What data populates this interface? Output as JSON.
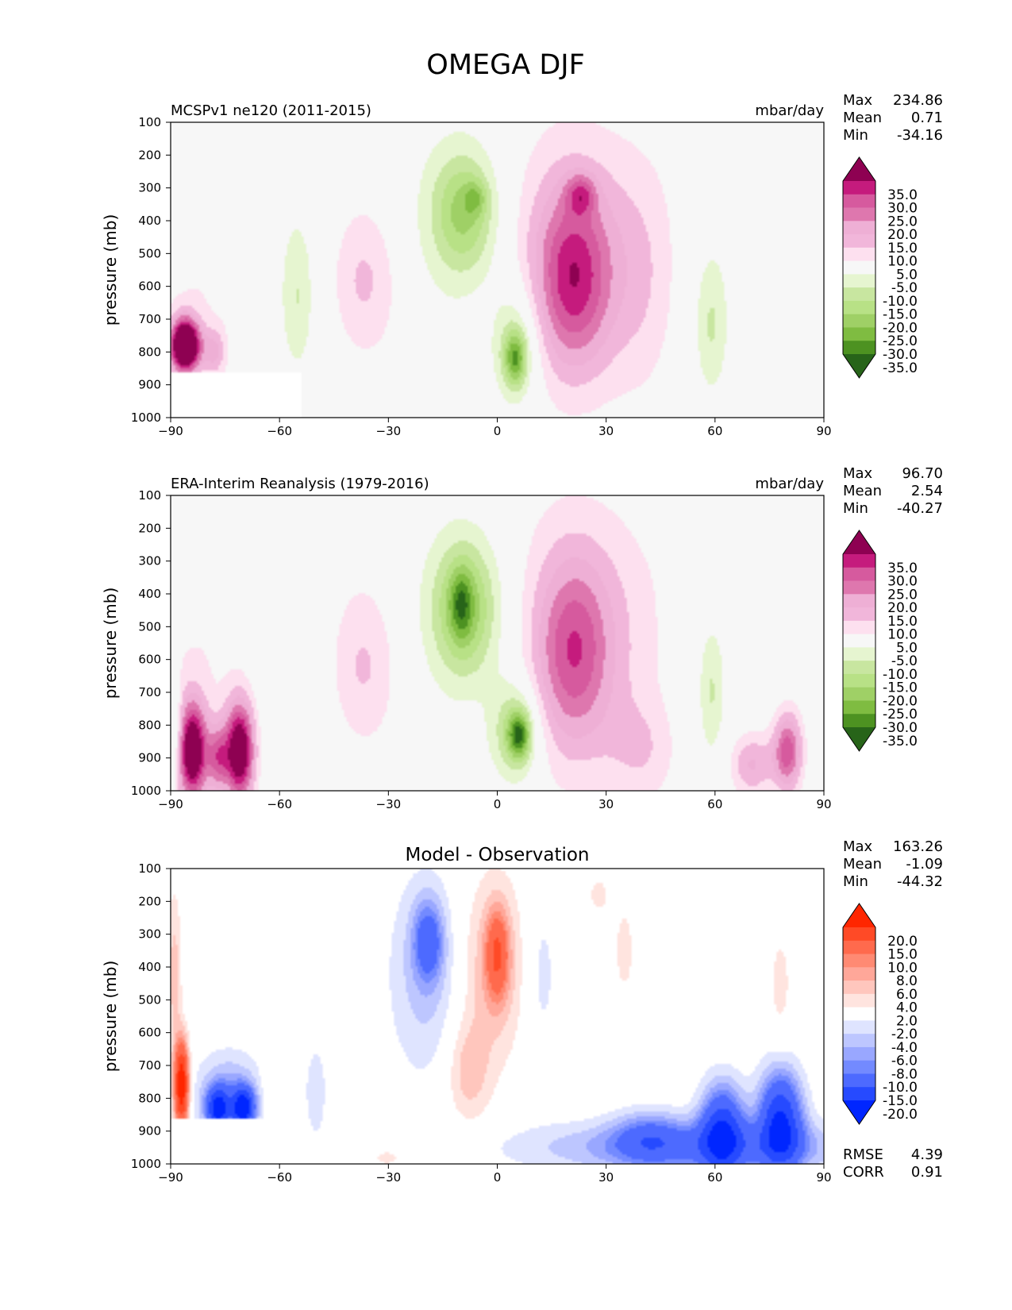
{
  "figure": {
    "title": "OMEGA DJF"
  },
  "chart_data": [
    {
      "type": "heatmap",
      "panel_key": "model",
      "title_left": "MCSPv1 ne120 (2011-2015)",
      "title_right": "mbar/day",
      "title_center": "",
      "ylabel": "pressure (mb)",
      "xlabel": "",
      "xlim": [
        -90,
        90
      ],
      "ylim": [
        1000,
        100
      ],
      "y_inverted": true,
      "x_ticks": [
        "−90",
        "−60",
        "−30",
        "0",
        "30",
        "60",
        "90"
      ],
      "y_ticks": [
        "100",
        "200",
        "300",
        "400",
        "500",
        "600",
        "700",
        "800",
        "900",
        "1000"
      ],
      "stats": {
        "max_label": "Max",
        "max": "234.86",
        "mean_label": "Mean",
        "mean": "0.71",
        "min_label": "Min",
        "min": "-34.16"
      },
      "colorbar": {
        "labels": [
          "35.0",
          "30.0",
          "25.0",
          "20.0",
          "15.0",
          "10.0",
          "5.0",
          "-5.0",
          "-10.0",
          "-15.0",
          "-20.0",
          "-25.0",
          "-30.0",
          "-35.0"
        ],
        "colors": [
          "#8e0152",
          "#c51b7d",
          "#d65a9e",
          "#de77ae",
          "#eeafd5",
          "#f1b6da",
          "#fde0ef",
          "#f7f7f7",
          "#e6f5d0",
          "#c8e6a0",
          "#b8e186",
          "#9fd066",
          "#7fbc41",
          "#4d9221",
          "#276419"
        ],
        "extend": "both"
      },
      "blobs": [
        {
          "lat": 20,
          "p": 500,
          "wlat": 26,
          "wp": 800,
          "v": 12
        },
        {
          "lat": 21,
          "p": 580,
          "wlat": 10,
          "wp": 540,
          "v": 24
        },
        {
          "lat": 23,
          "p": 320,
          "wlat": 4,
          "wp": 120,
          "v": 16
        },
        {
          "lat": -10,
          "p": 420,
          "wlat": 16,
          "wp": 620,
          "v": -11
        },
        {
          "lat": -9,
          "p": 370,
          "wlat": 8,
          "wp": 330,
          "v": -15
        },
        {
          "lat": -6,
          "p": 330,
          "wlat": 3,
          "wp": 100,
          "v": -10
        },
        {
          "lat": 5,
          "p": 780,
          "wlat": 7,
          "wp": 380,
          "v": -15
        },
        {
          "lat": 5,
          "p": 820,
          "wlat": 3,
          "wp": 160,
          "v": -22
        },
        {
          "lat": -37,
          "p": 580,
          "wlat": 16,
          "wp": 720,
          "v": 5
        },
        {
          "lat": -37,
          "p": 580,
          "wlat": 8,
          "wp": 380,
          "v": 7
        },
        {
          "lat": -55,
          "p": 580,
          "wlat": 14,
          "wp": 760,
          "v": -4
        },
        {
          "lat": -55,
          "p": 630,
          "wlat": 4,
          "wp": 420,
          "v": -8
        },
        {
          "lat": 58,
          "p": 620,
          "wlat": 10,
          "wp": 760,
          "v": -4
        },
        {
          "lat": 59,
          "p": 720,
          "wlat": 4,
          "wp": 380,
          "v": -8
        },
        {
          "lat": 78,
          "p": 640,
          "wlat": 8,
          "wp": 680,
          "v": 5
        },
        {
          "lat": 40,
          "p": 600,
          "wlat": 10,
          "wp": 700,
          "v": 5
        },
        {
          "lat": -80,
          "p": 560,
          "wlat": 16,
          "wp": 700,
          "v": 5
        },
        {
          "lat": -86,
          "p": 780,
          "wlat": 4,
          "wp": 160,
          "v": 60
        },
        {
          "lat": -78,
          "p": 800,
          "wlat": 3,
          "wp": 140,
          "v": 14
        }
      ],
      "mask": {
        "lon_max": -54,
        "p_min": 865
      }
    },
    {
      "type": "heatmap",
      "panel_key": "obs",
      "title_left": "ERA-Interim Reanalysis (1979-2016)",
      "title_right": "mbar/day",
      "title_center": "",
      "ylabel": "pressure (mb)",
      "xlabel": "",
      "xlim": [
        -90,
        90
      ],
      "ylim": [
        1000,
        100
      ],
      "y_inverted": true,
      "x_ticks": [
        "−90",
        "−60",
        "−30",
        "0",
        "30",
        "60",
        "90"
      ],
      "y_ticks": [
        "100",
        "200",
        "300",
        "400",
        "500",
        "600",
        "700",
        "800",
        "900",
        "1000"
      ],
      "stats": {
        "max_label": "Max",
        "max": "96.70",
        "mean_label": "Mean",
        "mean": "2.54",
        "min_label": "Min",
        "min": "-40.27"
      },
      "colorbar": {
        "labels": [
          "35.0",
          "30.0",
          "25.0",
          "20.0",
          "15.0",
          "10.0",
          "5.0",
          "-5.0",
          "-10.0",
          "-15.0",
          "-20.0",
          "-25.0",
          "-30.0",
          "-35.0"
        ],
        "colors": [
          "#8e0152",
          "#c51b7d",
          "#d65a9e",
          "#de77ae",
          "#eeafd5",
          "#f1b6da",
          "#fde0ef",
          "#f7f7f7",
          "#e6f5d0",
          "#c8e6a0",
          "#b8e186",
          "#9fd066",
          "#7fbc41",
          "#4d9221",
          "#276419"
        ],
        "extend": "both"
      },
      "blobs": [
        {
          "lat": 20,
          "p": 520,
          "wlat": 28,
          "wp": 820,
          "v": 12
        },
        {
          "lat": 21,
          "p": 580,
          "wlat": 10,
          "wp": 560,
          "v": 20
        },
        {
          "lat": -8,
          "p": 480,
          "wlat": 18,
          "wp": 640,
          "v": -12
        },
        {
          "lat": -9,
          "p": 440,
          "wlat": 8,
          "wp": 380,
          "v": -17
        },
        {
          "lat": -10,
          "p": 430,
          "wlat": 3,
          "wp": 200,
          "v": -14
        },
        {
          "lat": 5,
          "p": 820,
          "wlat": 7,
          "wp": 320,
          "v": -18
        },
        {
          "lat": 6,
          "p": 830,
          "wlat": 3,
          "wp": 140,
          "v": -25
        },
        {
          "lat": -37,
          "p": 580,
          "wlat": 18,
          "wp": 760,
          "v": 5
        },
        {
          "lat": -37,
          "p": 620,
          "wlat": 8,
          "wp": 420,
          "v": 7
        },
        {
          "lat": -57,
          "p": 600,
          "wlat": 16,
          "wp": 760,
          "v": -4
        },
        {
          "lat": 58,
          "p": 640,
          "wlat": 12,
          "wp": 760,
          "v": -4
        },
        {
          "lat": 59,
          "p": 700,
          "wlat": 3,
          "wp": 360,
          "v": -8
        },
        {
          "lat": 80,
          "p": 880,
          "wlat": 4,
          "wp": 240,
          "v": 28
        },
        {
          "lat": 70,
          "p": 920,
          "wlat": 6,
          "wp": 200,
          "v": 16
        },
        {
          "lat": 40,
          "p": 880,
          "wlat": 10,
          "wp": 320,
          "v": 8
        },
        {
          "lat": -80,
          "p": 600,
          "wlat": 18,
          "wp": 740,
          "v": 5
        },
        {
          "lat": -84,
          "p": 880,
          "wlat": 4,
          "wp": 300,
          "v": 45
        },
        {
          "lat": -71,
          "p": 880,
          "wlat": 4,
          "wp": 300,
          "v": 45
        },
        {
          "lat": -77,
          "p": 900,
          "wlat": 3,
          "wp": 200,
          "v": 22
        },
        {
          "lat": -89,
          "p": 820,
          "wlat": 2,
          "wp": 260,
          "v": -14
        }
      ],
      "mask": null
    },
    {
      "type": "heatmap",
      "panel_key": "diff",
      "title_left": "",
      "title_right": "",
      "title_center": "Model - Observation",
      "ylabel": "pressure (mb)",
      "xlabel": "",
      "xlim": [
        -90,
        90
      ],
      "ylim": [
        1000,
        100
      ],
      "y_inverted": true,
      "x_ticks": [
        "−90",
        "−60",
        "−30",
        "0",
        "30",
        "60",
        "90"
      ],
      "y_ticks": [
        "100",
        "200",
        "300",
        "400",
        "500",
        "600",
        "700",
        "800",
        "900",
        "1000"
      ],
      "stats": {
        "max_label": "Max",
        "max": "163.26",
        "mean_label": "Mean",
        "mean": "-1.09",
        "min_label": "Min",
        "min": "-44.32"
      },
      "extra_stats": {
        "rmse_label": "RMSE",
        "rmse": "4.39",
        "corr_label": "CORR",
        "corr": "0.91"
      },
      "colorbar": {
        "labels": [
          "20.0",
          "15.0",
          "10.0",
          "8.0",
          "6.0",
          "4.0",
          "2.0",
          "-2.0",
          "-4.0",
          "-6.0",
          "-8.0",
          "-10.0",
          "-15.0",
          "-20.0"
        ],
        "colors": [
          "#ff2600",
          "#ff4a26",
          "#ff6a4d",
          "#ff8a73",
          "#ffa799",
          "#ffc6bd",
          "#ffe4df",
          "#ffffff",
          "#dfe4ff",
          "#bdc6ff",
          "#99a7ff",
          "#738aff",
          "#4d6aff",
          "#264aff",
          "#0026ff"
        ],
        "extend": "both"
      },
      "blobs": [
        {
          "lat": -20,
          "p": 420,
          "wlat": 10,
          "wp": 620,
          "v": -5
        },
        {
          "lat": -19,
          "p": 320,
          "wlat": 4,
          "wp": 240,
          "v": -10
        },
        {
          "lat": -1,
          "p": 400,
          "wlat": 9,
          "wp": 560,
          "v": 6
        },
        {
          "lat": 0,
          "p": 360,
          "wlat": 3,
          "wp": 260,
          "v": 11
        },
        {
          "lat": -8,
          "p": 720,
          "wlat": 6,
          "wp": 320,
          "v": 5
        },
        {
          "lat": 12,
          "p": 420,
          "wlat": 5,
          "wp": 540,
          "v": -3
        },
        {
          "lat": 55,
          "p": 950,
          "wlat": 45,
          "wp": 160,
          "v": -9
        },
        {
          "lat": 78,
          "p": 870,
          "wlat": 6,
          "wp": 300,
          "v": -20
        },
        {
          "lat": 62,
          "p": 900,
          "wlat": 6,
          "wp": 280,
          "v": -18
        },
        {
          "lat": 42,
          "p": 920,
          "wlat": 10,
          "wp": 160,
          "v": -8
        },
        {
          "lat": -74,
          "p": 800,
          "wlat": 9,
          "wp": 260,
          "v": -8
        },
        {
          "lat": -70,
          "p": 830,
          "wlat": 3,
          "wp": 120,
          "v": -20
        },
        {
          "lat": -77,
          "p": 830,
          "wlat": 3,
          "wp": 120,
          "v": -18
        },
        {
          "lat": -87,
          "p": 760,
          "wlat": 2,
          "wp": 260,
          "v": 25
        },
        {
          "lat": -89,
          "p": 420,
          "wlat": 2,
          "wp": 500,
          "v": 5
        },
        {
          "lat": -63,
          "p": 720,
          "wlat": 2,
          "wp": 380,
          "v": 2.5
        },
        {
          "lat": -50,
          "p": 780,
          "wlat": 5,
          "wp": 480,
          "v": -2.5
        },
        {
          "lat": 28,
          "p": 180,
          "wlat": 3,
          "wp": 120,
          "v": 3
        },
        {
          "lat": 35,
          "p": 350,
          "wlat": 3,
          "wp": 300,
          "v": 3
        },
        {
          "lat": 78,
          "p": 450,
          "wlat": 3,
          "wp": 320,
          "v": 3
        },
        {
          "lat": -30,
          "p": 980,
          "wlat": 8,
          "wp": 100,
          "v": 2.5
        }
      ],
      "mask": {
        "lon_max": -63,
        "p_min": 865
      }
    }
  ]
}
